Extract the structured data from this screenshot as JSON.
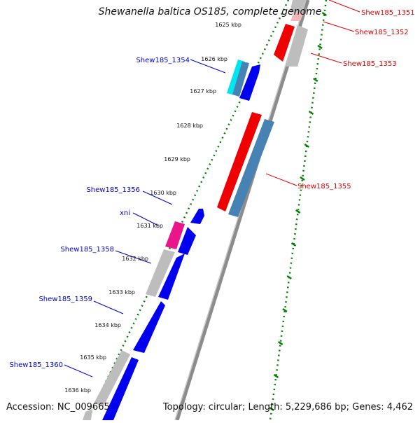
{
  "title": "Shewanella baltica OS185, complete genome",
  "footer": {
    "accession": "Accession: NC_009665",
    "summary": "Topology: circular; Length: 5,229,686 bp; Genes: 4,462"
  },
  "colors": {
    "backbone": "#8c8c8c",
    "tick": "#008000",
    "left_label": "#0000cc",
    "right_label": "#dd0000",
    "forward_gene": "#0000ee",
    "reverse_gene": "#ee0000",
    "pseudo_gene": "#bdbdbd",
    "steel_gene": "#4682b4",
    "cyan_gene": "#00e5ee",
    "magenta_gene": "#e8168a"
  },
  "kbp_ticks": [
    "1625 kbp",
    "1626 kbp",
    "1627 kbp",
    "1628 kbp",
    "1629 kbp",
    "1630 kbp",
    "1631 kbp",
    "1632 kbp",
    "1633 kbp",
    "1634 kbp",
    "1635 kbp",
    "1636 kbp"
  ],
  "left_labels": [
    "Shew185_1354",
    "Shew185_1356",
    "xni",
    "Shew185_1358",
    "Shew185_1359",
    "Shew185_1360"
  ],
  "right_labels": [
    "Shew185_1351",
    "Shew185_1352",
    "Shew185_1353",
    "Shew185_1355"
  ]
}
